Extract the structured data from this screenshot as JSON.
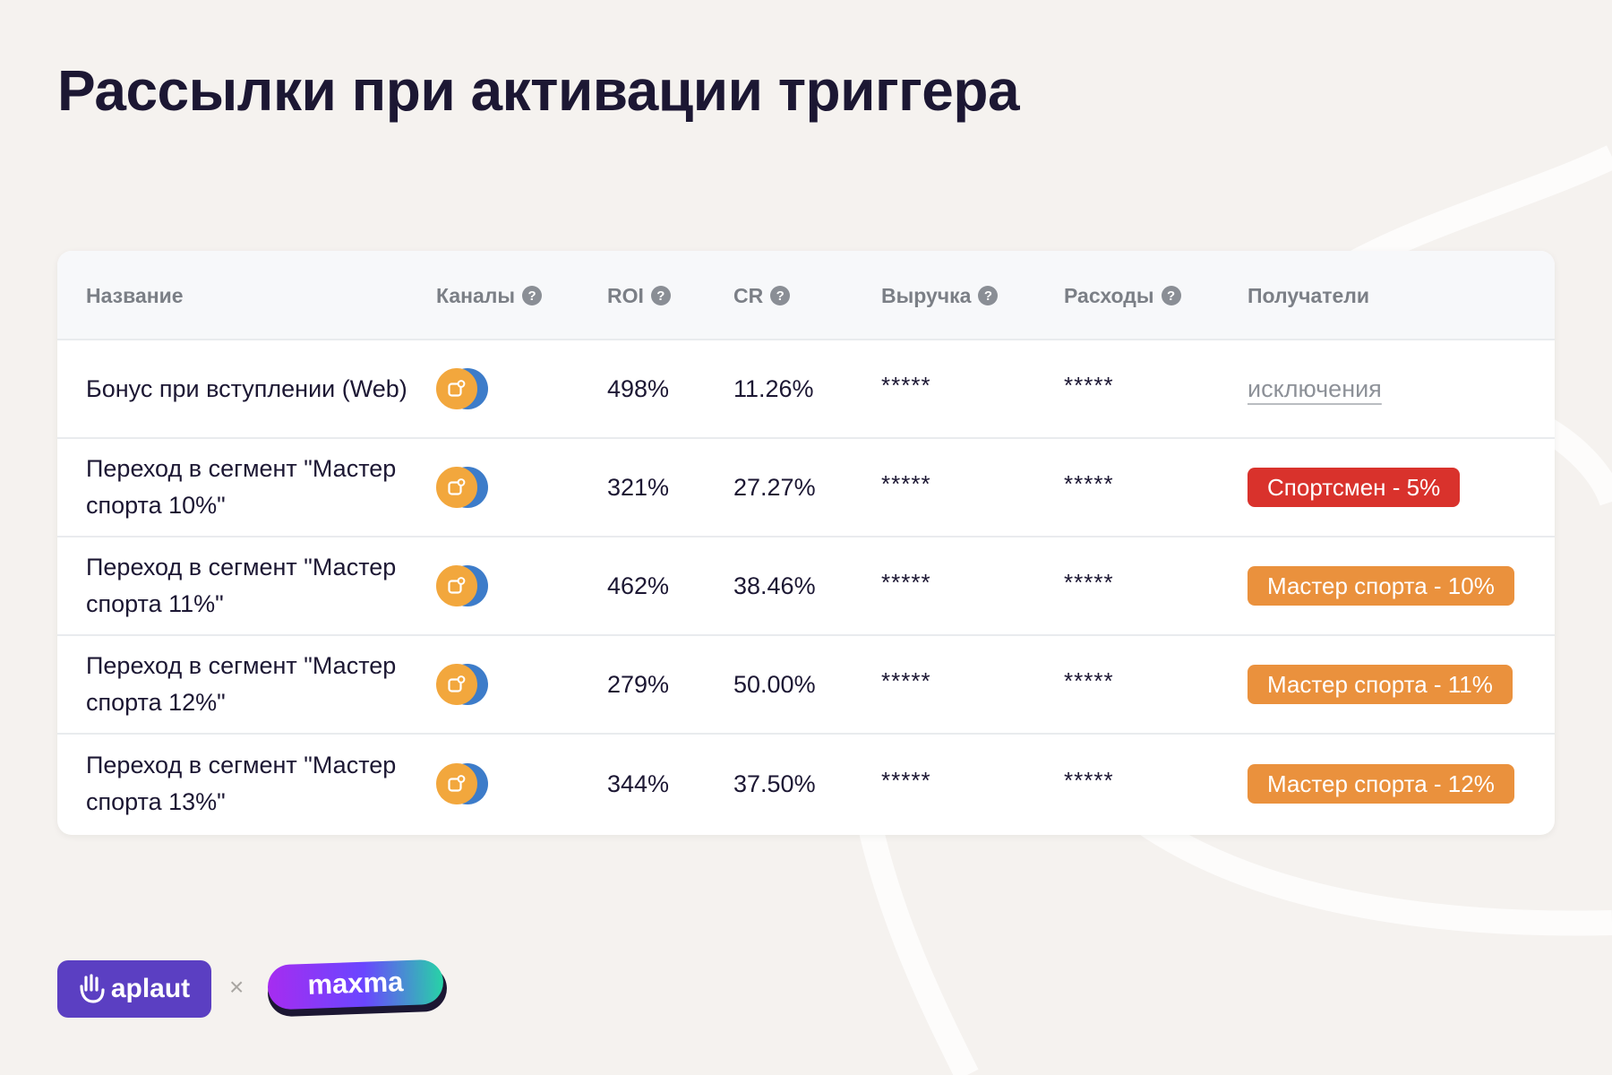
{
  "page": {
    "title": "Рассылки при активации триггера"
  },
  "table": {
    "columns": {
      "name": "Название",
      "channels": "Каналы",
      "roi": "ROI",
      "cr": "CR",
      "revenue": "Выручка",
      "expenses": "Расходы",
      "recipients": "Получатели"
    },
    "help_icon": "?",
    "rows": [
      {
        "name": "Бонус при вступлении (Web)",
        "channel_icon": "push-notification-icon",
        "roi": "498%",
        "cr": "11.26%",
        "revenue": "*****",
        "expenses": "*****",
        "recipients": "исключения",
        "recipients_type": "link"
      },
      {
        "name": "Переход в сегмент \"Мастер спорта 10%\"",
        "channel_icon": "push-notification-icon",
        "roi": "321%",
        "cr": "27.27%",
        "revenue": "*****",
        "expenses": "*****",
        "recipients": "Спортсмен - 5%",
        "recipients_type": "badge",
        "badge_color": "#d9322c"
      },
      {
        "name": "Переход в сегмент \"Мастер спорта 11%\"",
        "channel_icon": "push-notification-icon",
        "roi": "462%",
        "cr": "38.46%",
        "revenue": "*****",
        "expenses": "*****",
        "recipients": "Мастер спорта - 10%",
        "recipients_type": "badge",
        "badge_color": "#ea913d"
      },
      {
        "name": "Переход в сегмент \"Мастер спорта 12%\"",
        "channel_icon": "push-notification-icon",
        "roi": "279%",
        "cr": "50.00%",
        "revenue": "*****",
        "expenses": "*****",
        "recipients": "Мастер спорта - 11%",
        "recipients_type": "badge",
        "badge_color": "#ea913d"
      },
      {
        "name": "Переход в сегмент \"Мастер спорта 13%\"",
        "channel_icon": "push-notification-icon",
        "roi": "344%",
        "cr": "37.50%",
        "revenue": "*****",
        "expenses": "*****",
        "recipients": "Мастер спорта - 12%",
        "recipients_type": "badge",
        "badge_color": "#ea913d"
      }
    ]
  },
  "footer": {
    "aplaut_logo": "aplaut",
    "separator": "×",
    "maxma_logo": "maxma"
  },
  "colors": {
    "background": "#f5f2ef",
    "title": "#1c1733",
    "channel_primary": "#f2a73d",
    "channel_secondary": "#3d7cc9",
    "aplaut_brand": "#5b3fc2",
    "maxma_gradient_start": "#a62cf0",
    "maxma_gradient_end": "#27d3a6"
  }
}
